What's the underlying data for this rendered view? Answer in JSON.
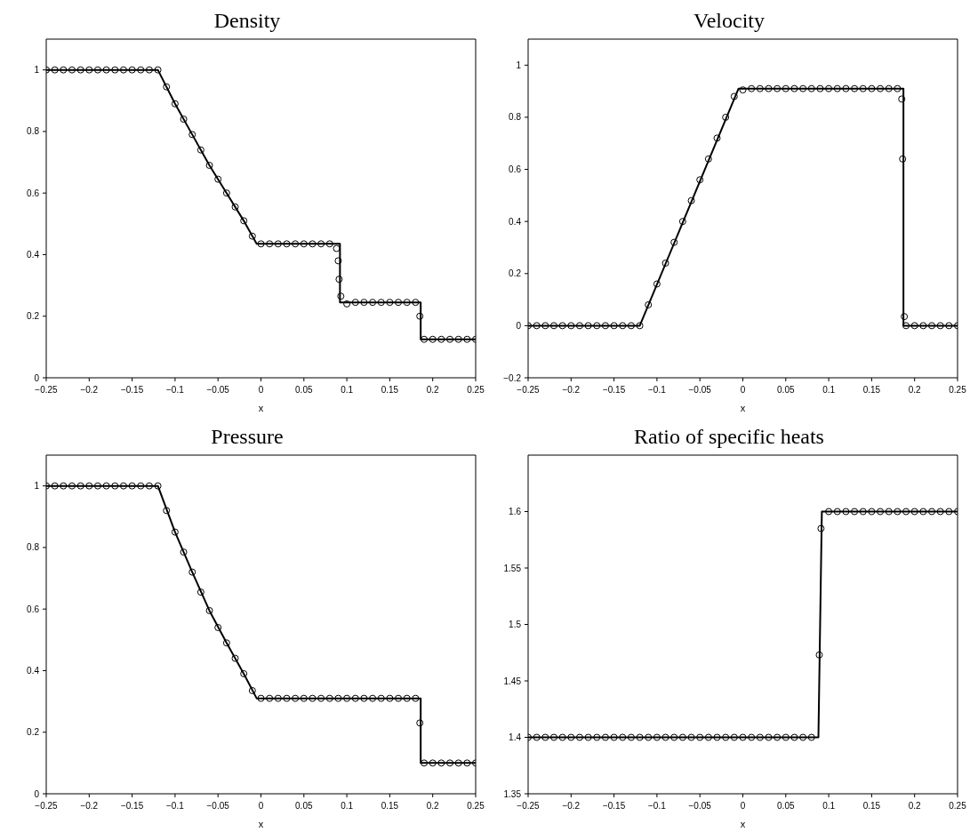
{
  "chart_data": [
    {
      "type": "line",
      "title": "Density",
      "xlabel": "x",
      "xlim": [
        -0.25,
        0.25
      ],
      "xticks": [
        {
          "value": -0.25,
          "label": "−0.25"
        },
        {
          "value": -0.2,
          "label": "−0.2"
        },
        {
          "value": -0.15,
          "label": "−0.15"
        },
        {
          "value": -0.1,
          "label": "−0.1"
        },
        {
          "value": -0.05,
          "label": "−0.05"
        },
        0,
        0.05,
        0.1,
        0.15,
        0.2,
        0.25
      ],
      "ylim": [
        0,
        1.1
      ],
      "yticks": [
        0,
        0.2,
        0.4,
        0.6,
        0.8,
        1
      ],
      "grid": false,
      "legend": false,
      "series": [
        {
          "type": "line",
          "color": "#000000",
          "line_style": "solid",
          "x": [
            -0.25,
            -0.12,
            -0.1,
            -0.08,
            -0.06,
            -0.04,
            -0.02,
            -0.005,
            0.092,
            0.092,
            0.186,
            0.186,
            0.25
          ],
          "values": [
            1,
            1,
            0.89,
            0.79,
            0.69,
            0.6,
            0.51,
            0.435,
            0.435,
            0.245,
            0.245,
            0.125,
            0.125
          ]
        },
        {
          "type": "scatter",
          "color": "#000000",
          "marker": "circle",
          "x": [
            -0.25,
            -0.24,
            -0.23,
            -0.22,
            -0.21,
            -0.2,
            -0.19,
            -0.18,
            -0.17,
            -0.16,
            -0.15,
            -0.14,
            -0.13,
            -0.12,
            -0.11,
            -0.1,
            -0.09,
            -0.08,
            -0.07,
            -0.06,
            -0.05,
            -0.04,
            -0.03,
            -0.02,
            -0.01,
            0,
            0.01,
            0.02,
            0.03,
            0.04,
            0.05,
            0.06,
            0.07,
            0.08,
            0.088,
            0.09,
            0.091,
            0.093,
            0.1,
            0.11,
            0.12,
            0.13,
            0.14,
            0.15,
            0.16,
            0.17,
            0.18,
            0.185,
            0.19,
            0.2,
            0.21,
            0.22,
            0.23,
            0.24,
            0.25
          ],
          "values": [
            1,
            1,
            1,
            1,
            1,
            1,
            1,
            1,
            1,
            1,
            1,
            1,
            1,
            1,
            0.945,
            0.89,
            0.84,
            0.79,
            0.74,
            0.69,
            0.645,
            0.6,
            0.555,
            0.51,
            0.46,
            0.435,
            0.435,
            0.435,
            0.435,
            0.435,
            0.435,
            0.435,
            0.435,
            0.435,
            0.42,
            0.38,
            0.32,
            0.265,
            0.24,
            0.245,
            0.245,
            0.245,
            0.245,
            0.245,
            0.245,
            0.245,
            0.245,
            0.2,
            0.125,
            0.125,
            0.125,
            0.125,
            0.125,
            0.125,
            0.125
          ]
        }
      ]
    },
    {
      "type": "line",
      "title": "Velocity",
      "xlabel": "x",
      "xlim": [
        -0.25,
        0.25
      ],
      "xticks": [
        {
          "value": -0.25,
          "label": "−0.25"
        },
        {
          "value": -0.2,
          "label": "−0.2"
        },
        {
          "value": -0.15,
          "label": "−0.15"
        },
        {
          "value": -0.1,
          "label": "−0.1"
        },
        {
          "value": -0.05,
          "label": "−0.05"
        },
        0,
        0.05,
        0.1,
        0.15,
        0.2,
        0.25
      ],
      "ylim": [
        -0.2,
        1.1
      ],
      "yticks": [
        {
          "value": -0.2,
          "label": "−0.2"
        },
        0,
        0.2,
        0.4,
        0.6,
        0.8,
        1
      ],
      "grid": false,
      "legend": false,
      "series": [
        {
          "type": "line",
          "color": "#000000",
          "line_style": "solid",
          "x": [
            -0.25,
            -0.12,
            -0.005,
            0.187,
            0.187,
            0.25
          ],
          "values": [
            0,
            0,
            0.91,
            0.91,
            0,
            0
          ]
        },
        {
          "type": "scatter",
          "color": "#000000",
          "marker": "circle",
          "x": [
            -0.25,
            -0.24,
            -0.23,
            -0.22,
            -0.21,
            -0.2,
            -0.19,
            -0.18,
            -0.17,
            -0.16,
            -0.15,
            -0.14,
            -0.13,
            -0.12,
            -0.11,
            -0.1,
            -0.09,
            -0.08,
            -0.07,
            -0.06,
            -0.05,
            -0.04,
            -0.03,
            -0.02,
            -0.01,
            0,
            0.01,
            0.02,
            0.03,
            0.04,
            0.05,
            0.06,
            0.07,
            0.08,
            0.09,
            0.1,
            0.11,
            0.12,
            0.13,
            0.14,
            0.15,
            0.16,
            0.17,
            0.18,
            0.185,
            0.186,
            0.188,
            0.19,
            0.2,
            0.21,
            0.22,
            0.23,
            0.24,
            0.25
          ],
          "values": [
            0,
            0,
            0,
            0,
            0,
            0,
            0,
            0,
            0,
            0,
            0,
            0,
            0,
            0,
            0.08,
            0.16,
            0.24,
            0.32,
            0.4,
            0.48,
            0.56,
            0.64,
            0.72,
            0.8,
            0.88,
            0.905,
            0.91,
            0.91,
            0.91,
            0.91,
            0.91,
            0.91,
            0.91,
            0.91,
            0.91,
            0.91,
            0.91,
            0.91,
            0.91,
            0.91,
            0.91,
            0.91,
            0.91,
            0.91,
            0.87,
            0.64,
            0.035,
            0,
            0,
            0,
            0,
            0,
            0,
            0
          ]
        }
      ]
    },
    {
      "type": "line",
      "title": "Pressure",
      "xlabel": "x",
      "xlim": [
        -0.25,
        0.25
      ],
      "xticks": [
        {
          "value": -0.25,
          "label": "−0.25"
        },
        {
          "value": -0.2,
          "label": "−0.2"
        },
        {
          "value": -0.15,
          "label": "−0.15"
        },
        {
          "value": -0.1,
          "label": "−0.1"
        },
        {
          "value": -0.05,
          "label": "−0.05"
        },
        0,
        0.05,
        0.1,
        0.15,
        0.2,
        0.25
      ],
      "ylim": [
        0,
        1.1
      ],
      "yticks": [
        0,
        0.2,
        0.4,
        0.6,
        0.8,
        1
      ],
      "grid": false,
      "legend": false,
      "series": [
        {
          "type": "line",
          "color": "#000000",
          "line_style": "solid",
          "x": [
            -0.25,
            -0.12,
            -0.1,
            -0.08,
            -0.06,
            -0.04,
            -0.02,
            -0.005,
            0.186,
            0.186,
            0.25
          ],
          "values": [
            1,
            1,
            0.85,
            0.72,
            0.595,
            0.49,
            0.39,
            0.31,
            0.31,
            0.1,
            0.1
          ]
        },
        {
          "type": "scatter",
          "color": "#000000",
          "marker": "circle",
          "x": [
            -0.25,
            -0.24,
            -0.23,
            -0.22,
            -0.21,
            -0.2,
            -0.19,
            -0.18,
            -0.17,
            -0.16,
            -0.15,
            -0.14,
            -0.13,
            -0.12,
            -0.11,
            -0.1,
            -0.09,
            -0.08,
            -0.07,
            -0.06,
            -0.05,
            -0.04,
            -0.03,
            -0.02,
            -0.01,
            0,
            0.01,
            0.02,
            0.03,
            0.04,
            0.05,
            0.06,
            0.07,
            0.08,
            0.09,
            0.1,
            0.11,
            0.12,
            0.13,
            0.14,
            0.15,
            0.16,
            0.17,
            0.18,
            0.185,
            0.19,
            0.2,
            0.21,
            0.22,
            0.23,
            0.24,
            0.25
          ],
          "values": [
            1,
            1,
            1,
            1,
            1,
            1,
            1,
            1,
            1,
            1,
            1,
            1,
            1,
            1,
            0.92,
            0.85,
            0.785,
            0.72,
            0.655,
            0.595,
            0.54,
            0.49,
            0.44,
            0.39,
            0.335,
            0.31,
            0.31,
            0.31,
            0.31,
            0.31,
            0.31,
            0.31,
            0.31,
            0.31,
            0.31,
            0.31,
            0.31,
            0.31,
            0.31,
            0.31,
            0.31,
            0.31,
            0.31,
            0.31,
            0.23,
            0.1,
            0.1,
            0.1,
            0.1,
            0.1,
            0.1,
            0.1
          ]
        }
      ]
    },
    {
      "type": "line",
      "title": "Ratio of specific heats",
      "xlabel": "x",
      "xlim": [
        -0.25,
        0.25
      ],
      "xticks": [
        {
          "value": -0.25,
          "label": "−0.25"
        },
        {
          "value": -0.2,
          "label": "−0.2"
        },
        {
          "value": -0.15,
          "label": "−0.15"
        },
        {
          "value": -0.1,
          "label": "−0.1"
        },
        {
          "value": -0.05,
          "label": "−0.05"
        },
        0,
        0.05,
        0.1,
        0.15,
        0.2,
        0.25
      ],
      "ylim": [
        1.35,
        1.65
      ],
      "yticks": [
        1.35,
        1.4,
        1.45,
        1.5,
        1.55,
        1.6
      ],
      "grid": false,
      "legend": false,
      "series": [
        {
          "type": "line",
          "color": "#000000",
          "line_style": "solid",
          "x": [
            -0.25,
            0.088,
            0.092,
            0.25
          ],
          "values": [
            1.4,
            1.4,
            1.6,
            1.6
          ]
        },
        {
          "type": "scatter",
          "color": "#000000",
          "marker": "circle",
          "x": [
            -0.25,
            -0.24,
            -0.23,
            -0.22,
            -0.21,
            -0.2,
            -0.19,
            -0.18,
            -0.17,
            -0.16,
            -0.15,
            -0.14,
            -0.13,
            -0.12,
            -0.11,
            -0.1,
            -0.09,
            -0.08,
            -0.07,
            -0.06,
            -0.05,
            -0.04,
            -0.03,
            -0.02,
            -0.01,
            0,
            0.01,
            0.02,
            0.03,
            0.04,
            0.05,
            0.06,
            0.07,
            0.08,
            0.089,
            0.091,
            0.1,
            0.11,
            0.12,
            0.13,
            0.14,
            0.15,
            0.16,
            0.17,
            0.18,
            0.19,
            0.2,
            0.21,
            0.22,
            0.23,
            0.24,
            0.25
          ],
          "values": [
            1.4,
            1.4,
            1.4,
            1.4,
            1.4,
            1.4,
            1.4,
            1.4,
            1.4,
            1.4,
            1.4,
            1.4,
            1.4,
            1.4,
            1.4,
            1.4,
            1.4,
            1.4,
            1.4,
            1.4,
            1.4,
            1.4,
            1.4,
            1.4,
            1.4,
            1.4,
            1.4,
            1.4,
            1.4,
            1.4,
            1.4,
            1.4,
            1.4,
            1.4,
            1.473,
            1.585,
            1.6,
            1.6,
            1.6,
            1.6,
            1.6,
            1.6,
            1.6,
            1.6,
            1.6,
            1.6,
            1.6,
            1.6,
            1.6,
            1.6,
            1.6,
            1.6
          ]
        }
      ]
    }
  ]
}
